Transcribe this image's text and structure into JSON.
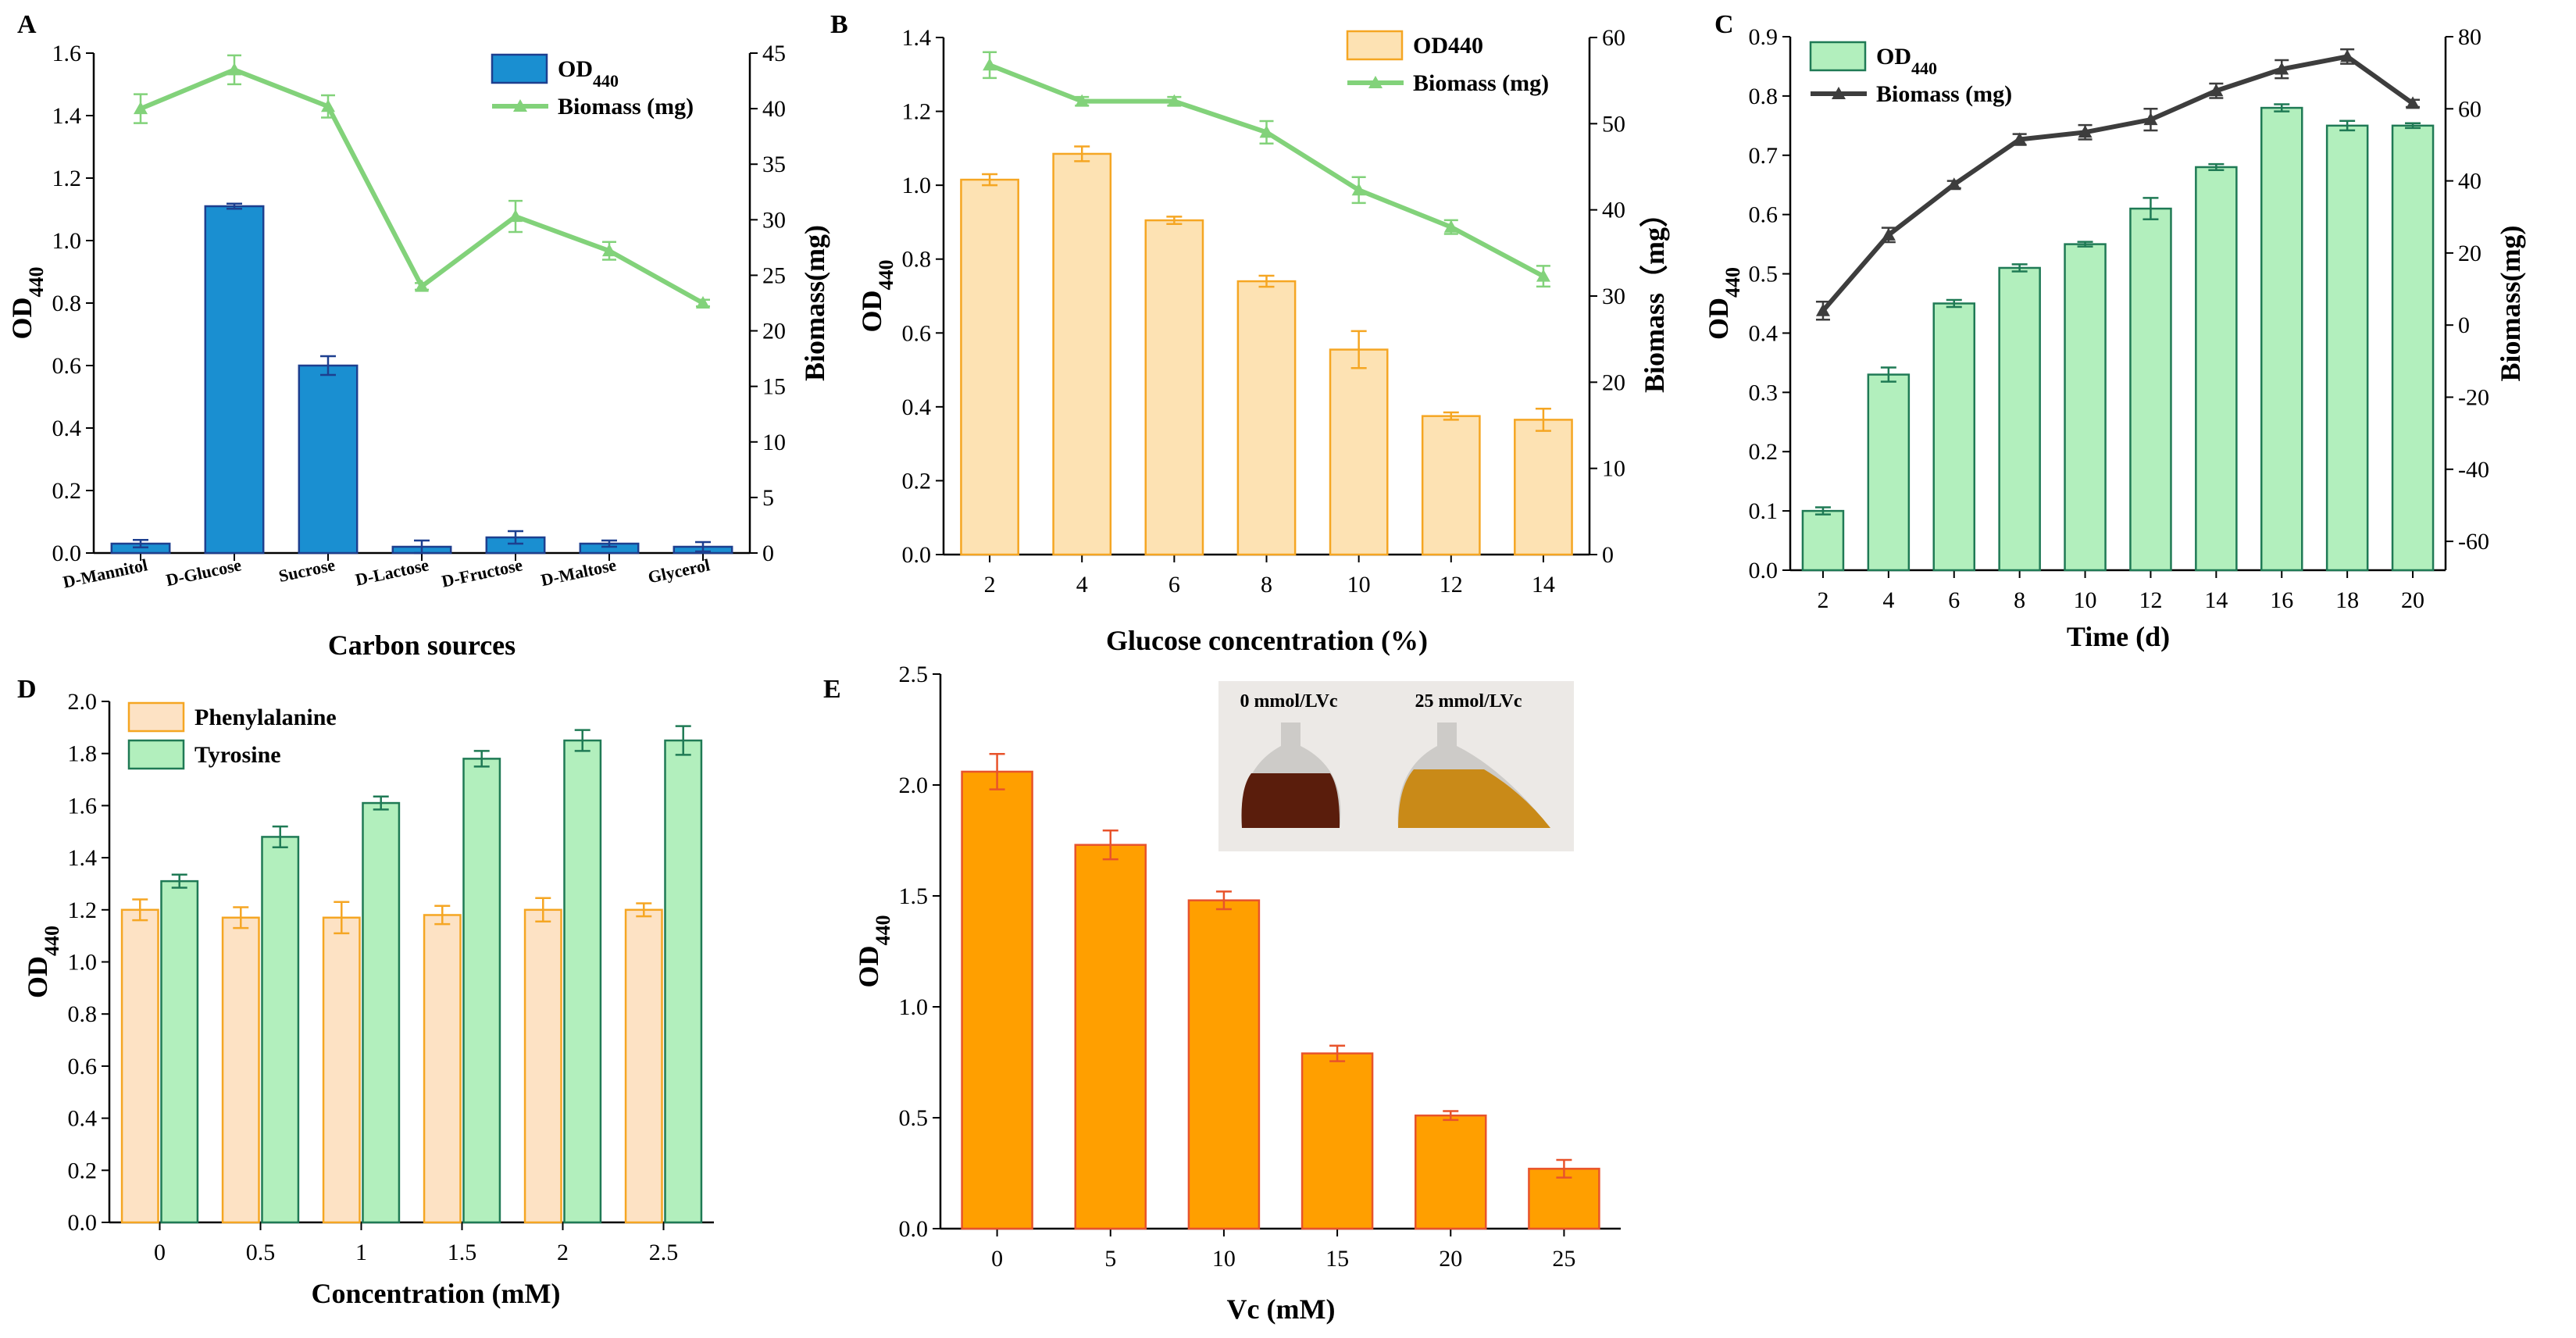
{
  "chart_data": [
    {
      "panel": "A",
      "type": "bar+line",
      "categories": [
        "D-Mannitol",
        "D-Glucose",
        "Sucrose",
        "D-Lactose",
        "D-Fructose",
        "D-Maltose",
        "Glycerol"
      ],
      "series": [
        {
          "name": "OD440",
          "kind": "bar",
          "axis": "left",
          "color": "#1a8fd1",
          "edge": "#1d3f8f",
          "values": [
            0.03,
            1.11,
            0.6,
            0.02,
            0.05,
            0.03,
            0.02
          ],
          "errors": [
            0.012,
            0.008,
            0.03,
            0.02,
            0.02,
            0.01,
            0.015
          ]
        },
        {
          "name": "Biomass (mg)",
          "kind": "line",
          "axis": "right",
          "color": "#82d27a",
          "values": [
            40,
            43.5,
            40.2,
            24,
            30.3,
            27.2,
            22.5
          ],
          "errors": [
            1.3,
            1.3,
            1.0,
            0.3,
            1.4,
            0.8,
            0.3
          ]
        }
      ],
      "xlabel": "Carbon sources",
      "ylabel": "OD",
      "ylabel_sub": "440",
      "y2label": "Biomass(mg)",
      "ylim": [
        0,
        1.6
      ],
      "yticks": [
        "0.0",
        "0.2",
        "0.4",
        "0.6",
        "0.8",
        "1.0",
        "1.2",
        "1.4",
        "1.6"
      ],
      "y2lim": [
        0,
        45
      ],
      "y2ticks": [
        "0",
        "5",
        "10",
        "15",
        "20",
        "25",
        "30",
        "35",
        "40",
        "45"
      ],
      "legend": [
        {
          "text": "OD",
          "sub": "440"
        },
        {
          "text": "Biomass (mg)"
        }
      ]
    },
    {
      "panel": "B",
      "type": "bar+line",
      "categories": [
        "2",
        "4",
        "6",
        "8",
        "10",
        "12",
        "14"
      ],
      "series": [
        {
          "name": "OD440",
          "kind": "bar",
          "axis": "left",
          "color": "#fde2b3",
          "edge": "#f5a623",
          "values": [
            1.015,
            1.085,
            0.905,
            0.74,
            0.555,
            0.375,
            0.365
          ],
          "errors": [
            0.015,
            0.02,
            0.01,
            0.015,
            0.05,
            0.01,
            0.03
          ]
        },
        {
          "name": "Biomass (mg)",
          "kind": "line",
          "axis": "right",
          "color": "#82d27a",
          "values": [
            56.8,
            52.6,
            52.6,
            49,
            42.3,
            38,
            32.3
          ],
          "errors": [
            1.5,
            0.5,
            0.5,
            1.3,
            1.5,
            0.8,
            1.2
          ]
        }
      ],
      "xlabel": "Glucose concentration (%)",
      "ylabel": "OD",
      "ylabel_sub": "440",
      "y2label": "Biomass（mg）",
      "ylim": [
        0,
        1.4
      ],
      "yticks": [
        "0.0",
        "0.2",
        "0.4",
        "0.6",
        "0.8",
        "1.0",
        "1.2",
        "1.4"
      ],
      "y2lim": [
        0,
        60
      ],
      "y2ticks": [
        "0",
        "10",
        "20",
        "30",
        "40",
        "50",
        "60"
      ],
      "legend": [
        {
          "text": "OD440"
        },
        {
          "text": "Biomass (mg)"
        }
      ]
    },
    {
      "panel": "C",
      "type": "bar+line",
      "categories": [
        "2",
        "4",
        "6",
        "8",
        "10",
        "12",
        "14",
        "16",
        "18",
        "20"
      ],
      "series": [
        {
          "name": "OD440",
          "kind": "bar",
          "axis": "left",
          "color": "#b2efbd",
          "edge": "#1f7a55",
          "values": [
            0.1,
            0.33,
            0.45,
            0.51,
            0.55,
            0.61,
            0.68,
            0.78,
            0.75,
            0.75
          ],
          "errors": [
            0.006,
            0.012,
            0.006,
            0.006,
            0.004,
            0.018,
            0.005,
            0.006,
            0.008,
            0.004
          ]
        },
        {
          "name": "Biomass (mg)",
          "kind": "line",
          "axis": "right",
          "color": "#3d3d3d",
          "values": [
            4,
            25,
            39,
            51.5,
            53.5,
            57,
            65,
            71,
            74.5,
            61.5
          ],
          "errors": [
            2.5,
            2.0,
            1.0,
            1.5,
            2.0,
            3.0,
            2.0,
            2.5,
            2.0,
            1.0
          ]
        }
      ],
      "xlabel": "Time (d)",
      "ylabel": "OD",
      "ylabel_sub": "440",
      "y2label": "Biomass(mg)",
      "ylim": [
        0,
        0.9
      ],
      "yticks": [
        "0.0",
        "0.1",
        "0.2",
        "0.3",
        "0.4",
        "0.5",
        "0.6",
        "0.7",
        "0.8",
        "0.9"
      ],
      "y2lim": [
        -68,
        80
      ],
      "y2ticks": [
        "-60",
        "-40",
        "-20",
        "0",
        "20",
        "40",
        "60",
        "80"
      ],
      "legend": [
        {
          "text": "OD",
          "sub": "440"
        },
        {
          "text": "Biomass (mg)"
        }
      ]
    },
    {
      "panel": "D",
      "type": "bar",
      "categories": [
        "0",
        "0.5",
        "1",
        "1.5",
        "2",
        "2.5"
      ],
      "series": [
        {
          "name": "Phenylalanine",
          "color": "#fde2c4",
          "edge": "#f5a623",
          "values": [
            1.2,
            1.17,
            1.17,
            1.18,
            1.2,
            1.2
          ],
          "errors": [
            0.04,
            0.04,
            0.06,
            0.035,
            0.045,
            0.025
          ]
        },
        {
          "name": "Tyrosine",
          "color": "#b2efbd",
          "edge": "#1f7a55",
          "values": [
            1.31,
            1.48,
            1.61,
            1.78,
            1.85,
            1.85
          ],
          "errors": [
            0.025,
            0.04,
            0.025,
            0.03,
            0.04,
            0.055
          ]
        }
      ],
      "xlabel": "Concentration (mM)",
      "ylabel": "OD",
      "ylabel_sub": "440",
      "ylim": [
        0,
        2.0
      ],
      "yticks": [
        "0.0",
        "0.2",
        "0.4",
        "0.6",
        "0.8",
        "1.0",
        "1.2",
        "1.4",
        "1.6",
        "1.8",
        "2.0"
      ],
      "legend": [
        {
          "text": "Phenylalanine"
        },
        {
          "text": "Tyrosine"
        }
      ]
    },
    {
      "panel": "E",
      "type": "bar",
      "categories": [
        "0",
        "5",
        "10",
        "15",
        "20",
        "25"
      ],
      "series": [
        {
          "name": "OD440",
          "color": "#ff9f00",
          "edge": "#e8532b",
          "values": [
            2.06,
            1.73,
            1.48,
            0.79,
            0.51,
            0.27
          ],
          "errors": [
            0.08,
            0.065,
            0.04,
            0.035,
            0.02,
            0.04
          ]
        }
      ],
      "xlabel": "Vc (mM)",
      "ylabel": "OD",
      "ylabel_sub": "440",
      "ylim": [
        0,
        2.5
      ],
      "yticks": [
        "0.0",
        "0.5",
        "1.0",
        "1.5",
        "2.0",
        "2.5"
      ],
      "inset": {
        "left_label": "0 mmol/LVc",
        "right_label": "25 mmol/LVc"
      }
    }
  ]
}
